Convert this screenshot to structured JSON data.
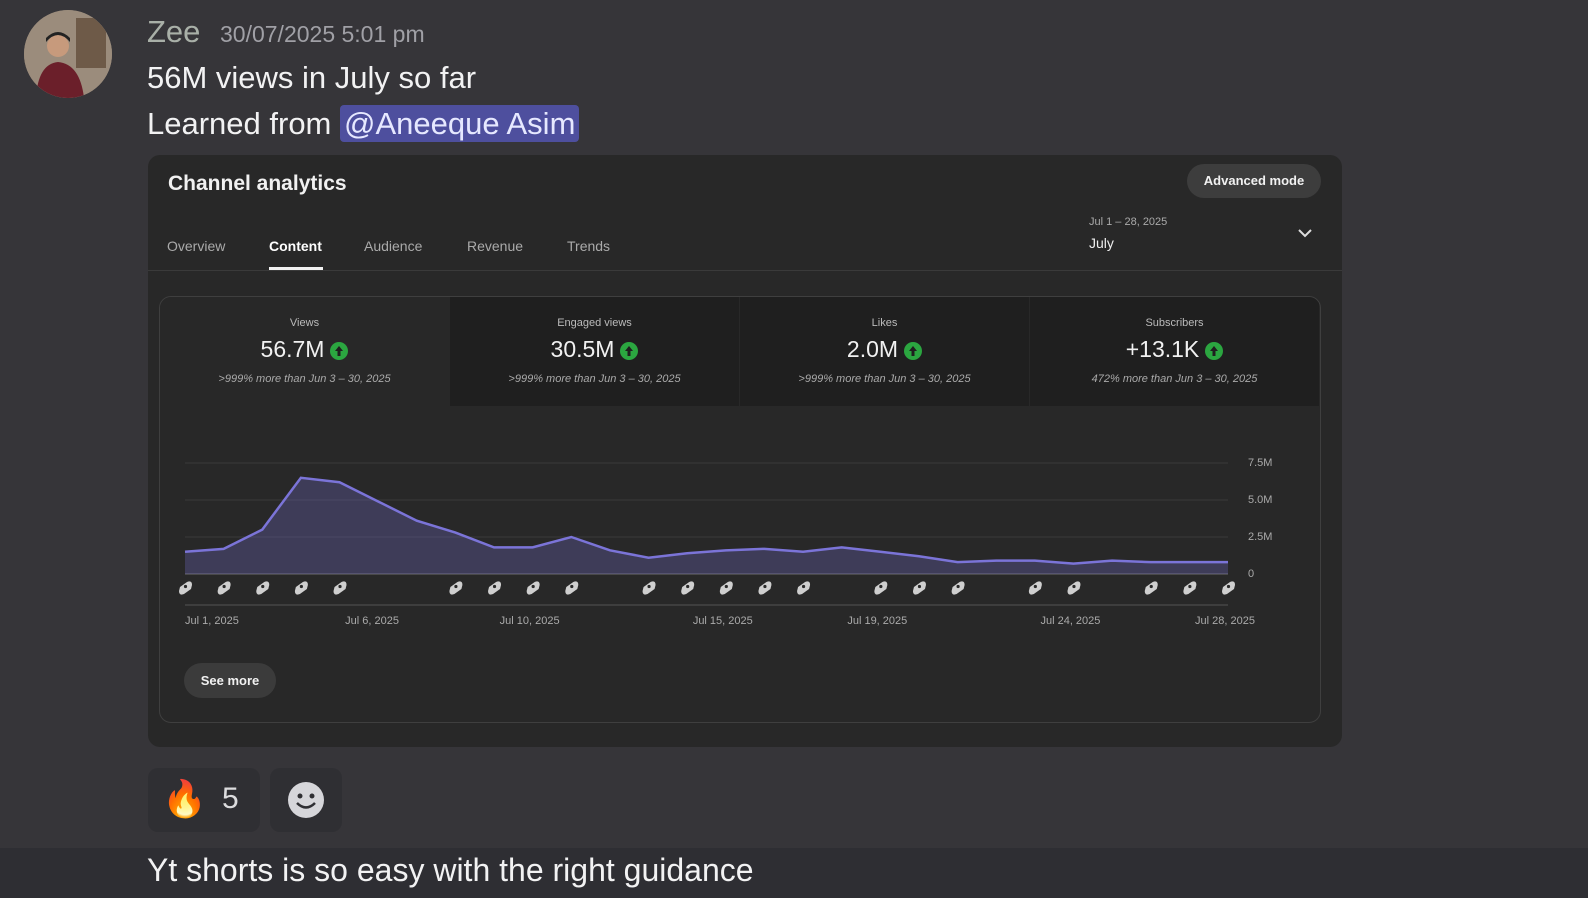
{
  "message": {
    "author": "Zee",
    "timestamp": "30/07/2025 5:01 pm",
    "line1": "56M views in July so far",
    "line2": "Learned from",
    "mention": "@Aneeque Asim"
  },
  "embed": {
    "title": "Channel analytics",
    "button": "Advanced mode",
    "tabs": [
      "Overview",
      "Content",
      "Audience",
      "Revenue",
      "Trends"
    ],
    "date_range": "Jul 1 – 28, 2025",
    "date_label": "July",
    "metrics": [
      {
        "label": "Views",
        "value": "56.7M",
        "comparison": ">999% more than Jun 3 – 30, 2025"
      },
      {
        "label": "Engaged views",
        "value": "30.5M",
        "comparison": ">999% more than Jun 3 – 30, 2025"
      },
      {
        "label": "Likes",
        "value": "2.0M",
        "comparison": ">999% more than Jun 3 – 30, 2025"
      },
      {
        "label": "Subscribers",
        "value": "+13.1K",
        "comparison": "472% more than Jun 3 – 30, 2025"
      }
    ],
    "see_more": "See more"
  },
  "chart_data": {
    "type": "area",
    "categories": [
      "Jul 1, 2025",
      null,
      null,
      null,
      null,
      "Jul 6, 2025",
      null,
      null,
      null,
      "Jul 10, 2025",
      null,
      null,
      null,
      null,
      "Jul 15, 2025",
      null,
      null,
      null,
      "Jul 19, 2025",
      null,
      null,
      null,
      null,
      "Jul 24, 2025",
      null,
      null,
      null,
      "Jul 28, 2025"
    ],
    "series": [
      {
        "color": "#7b74d8",
        "values": [
          1.5,
          1.7,
          3.0,
          6.5,
          6.2,
          4.9,
          3.6,
          2.8,
          1.8,
          1.8,
          2.5,
          1.6,
          1.1,
          1.4,
          1.6,
          1.7,
          1.5,
          1.8,
          1.5,
          1.2,
          0.8,
          0.9,
          0.9,
          0.7,
          0.9,
          0.8,
          0.8,
          0.8
        ]
      }
    ],
    "ylim": [
      0,
      7.5
    ],
    "yticks": [
      {
        "value": 0,
        "label": "0"
      },
      {
        "value": 2.5,
        "label": "2.5M"
      },
      {
        "value": 5,
        "label": "5.0M"
      },
      {
        "value": 7.5,
        "label": "7.5M"
      }
    ],
    "grid": true
  },
  "reactions": [
    {
      "emoji": "🔥",
      "count": 5
    }
  ],
  "next_message": "Yt shorts is so easy with the right guidance"
}
